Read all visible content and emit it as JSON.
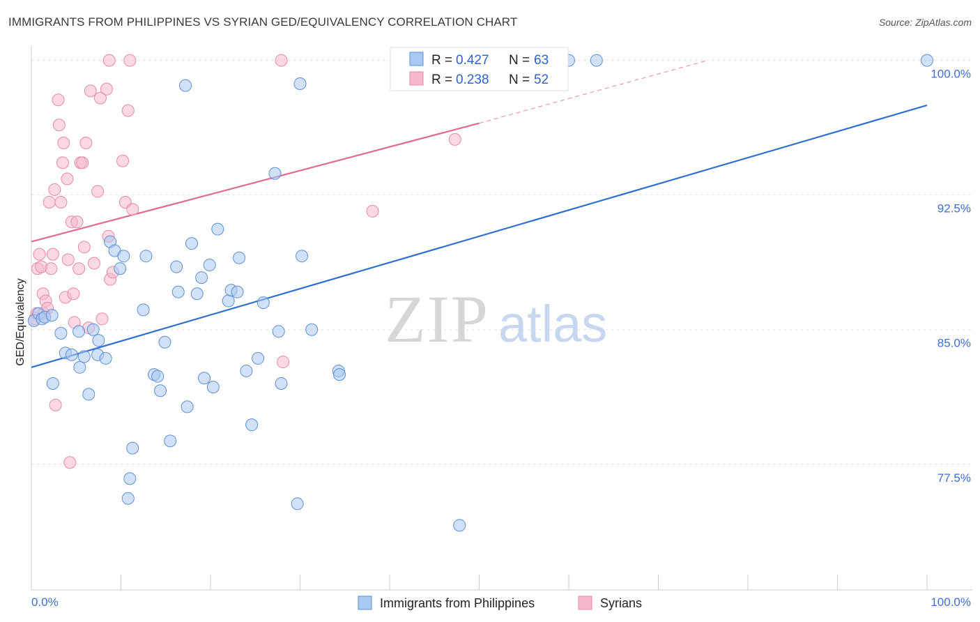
{
  "header": {
    "title": "IMMIGRANTS FROM PHILIPPINES VS SYRIAN GED/EQUIVALENCY CORRELATION CHART",
    "source": "Source: ZipAtlas.com"
  },
  "watermark": {
    "zip": "ZIP",
    "atlas": "atlas"
  },
  "legend": {
    "series": [
      {
        "r_label": "R =",
        "r_value": "0.427",
        "n_label": "N =",
        "n_value": "63"
      },
      {
        "r_label": "R =",
        "r_value": "0.238",
        "n_label": "N =",
        "n_value": "52"
      }
    ]
  },
  "colors": {
    "blue_fill": "#a9c8f2",
    "blue_stroke": "#5d8fd8",
    "blue_line": "#2f6fcf",
    "pink_fill": "#f7b8cb",
    "pink_stroke": "#e68aa8",
    "pink_line": "#e06a92",
    "grid": "#e2e2e2",
    "tick_text": "#3f6fd1"
  },
  "chart_data": {
    "type": "scatter",
    "title": "IMMIGRANTS FROM PHILIPPINES VS SYRIAN GED/EQUIVALENCY CORRELATION CHART",
    "xlabel": "",
    "ylabel": "GED/Equivalency",
    "xlim": [
      0,
      100
    ],
    "ylim": [
      70.5,
      100.8
    ],
    "x_tick_labels": [
      "0.0%",
      "100.0%"
    ],
    "y_ticks": [
      77.5,
      85.0,
      92.5,
      100.0
    ],
    "y_tick_labels": [
      "77.5%",
      "85.0%",
      "92.5%",
      "100.0%"
    ],
    "grid": true,
    "legend_position": "bottom",
    "series": [
      {
        "name": "Immigrants from Philippines",
        "color": "#a9c8f2",
        "trend": {
          "x": [
            0,
            100
          ],
          "y": [
            82.9,
            97.5
          ]
        },
        "points": [
          [
            0.3,
            85.5
          ],
          [
            0.8,
            85.9
          ],
          [
            1.2,
            85.6
          ],
          [
            1.5,
            85.7
          ],
          [
            2.3,
            85.8
          ],
          [
            3.3,
            84.8
          ],
          [
            3.8,
            83.7
          ],
          [
            4.5,
            83.6
          ],
          [
            5.3,
            84.9
          ],
          [
            5.4,
            82.9
          ],
          [
            5.9,
            83.5
          ],
          [
            6.9,
            85.0
          ],
          [
            7.5,
            84.4
          ],
          [
            2.4,
            82.0
          ],
          [
            6.4,
            81.4
          ],
          [
            7.4,
            83.6
          ],
          [
            8.3,
            83.4
          ],
          [
            8.8,
            89.9
          ],
          [
            9.3,
            89.4
          ],
          [
            9.9,
            88.4
          ],
          [
            10.3,
            89.1
          ],
          [
            12.5,
            86.1
          ],
          [
            12.8,
            89.1
          ],
          [
            13.7,
            82.5
          ],
          [
            14.1,
            82.4
          ],
          [
            14.4,
            81.6
          ],
          [
            14.9,
            84.3
          ],
          [
            15.5,
            78.8
          ],
          [
            16.2,
            88.5
          ],
          [
            16.4,
            87.1
          ],
          [
            17.2,
            98.6
          ],
          [
            17.4,
            80.7
          ],
          [
            17.9,
            89.8
          ],
          [
            18.5,
            87.0
          ],
          [
            19.0,
            87.9
          ],
          [
            19.3,
            82.3
          ],
          [
            19.9,
            88.6
          ],
          [
            20.3,
            81.8
          ],
          [
            20.8,
            90.6
          ],
          [
            22.0,
            86.6
          ],
          [
            22.3,
            87.2
          ],
          [
            23.0,
            87.1
          ],
          [
            23.2,
            89.0
          ],
          [
            24.0,
            82.7
          ],
          [
            24.6,
            79.7
          ],
          [
            25.3,
            83.4
          ],
          [
            25.9,
            86.5
          ],
          [
            27.2,
            93.7
          ],
          [
            27.6,
            84.9
          ],
          [
            27.9,
            82.0
          ],
          [
            11.3,
            78.4
          ],
          [
            11.0,
            76.7
          ],
          [
            10.8,
            75.6
          ],
          [
            29.7,
            75.3
          ],
          [
            30.0,
            98.7
          ],
          [
            30.2,
            89.1
          ],
          [
            31.3,
            85.0
          ],
          [
            34.3,
            82.7
          ],
          [
            34.4,
            82.5
          ],
          [
            47.8,
            74.1
          ],
          [
            60.0,
            100.0
          ],
          [
            63.1,
            100.0
          ],
          [
            100.0,
            100.0
          ]
        ]
      },
      {
        "name": "Syrians",
        "color": "#f7b8cb",
        "trend": {
          "x": [
            0,
            50
          ],
          "y": [
            89.9,
            96.5
          ]
        },
        "trend_dashed": {
          "x": [
            50,
            75.5
          ],
          "y": [
            96.5,
            100.0
          ]
        },
        "points": [
          [
            0.4,
            85.6
          ],
          [
            0.6,
            85.9
          ],
          [
            0.7,
            88.4
          ],
          [
            0.9,
            89.2
          ],
          [
            1.1,
            88.5
          ],
          [
            1.3,
            87.0
          ],
          [
            1.4,
            85.9
          ],
          [
            1.6,
            86.6
          ],
          [
            1.8,
            86.2
          ],
          [
            2.0,
            92.1
          ],
          [
            2.2,
            88.4
          ],
          [
            2.4,
            89.2
          ],
          [
            2.6,
            92.8
          ],
          [
            2.7,
            80.8
          ],
          [
            3.0,
            97.8
          ],
          [
            3.1,
            96.4
          ],
          [
            3.3,
            92.1
          ],
          [
            3.5,
            94.3
          ],
          [
            3.6,
            95.4
          ],
          [
            3.8,
            86.8
          ],
          [
            4.0,
            93.4
          ],
          [
            4.1,
            88.9
          ],
          [
            4.3,
            77.6
          ],
          [
            4.5,
            91.0
          ],
          [
            4.7,
            87.0
          ],
          [
            4.8,
            85.4
          ],
          [
            5.1,
            91.0
          ],
          [
            5.3,
            88.4
          ],
          [
            5.5,
            94.3
          ],
          [
            5.7,
            94.3
          ],
          [
            5.9,
            89.6
          ],
          [
            6.1,
            95.4
          ],
          [
            6.4,
            85.1
          ],
          [
            6.6,
            98.3
          ],
          [
            7.0,
            88.7
          ],
          [
            7.4,
            92.7
          ],
          [
            7.7,
            97.9
          ],
          [
            7.9,
            85.6
          ],
          [
            8.4,
            98.4
          ],
          [
            8.6,
            90.2
          ],
          [
            8.8,
            87.8
          ],
          [
            9.1,
            88.2
          ],
          [
            8.7,
            100.0
          ],
          [
            10.2,
            94.4
          ],
          [
            10.5,
            92.1
          ],
          [
            10.8,
            97.2
          ],
          [
            11.3,
            91.7
          ],
          [
            11.0,
            100.0
          ],
          [
            27.9,
            100.0
          ],
          [
            28.1,
            83.2
          ],
          [
            38.1,
            91.6
          ],
          [
            47.3,
            95.6
          ]
        ]
      }
    ]
  }
}
